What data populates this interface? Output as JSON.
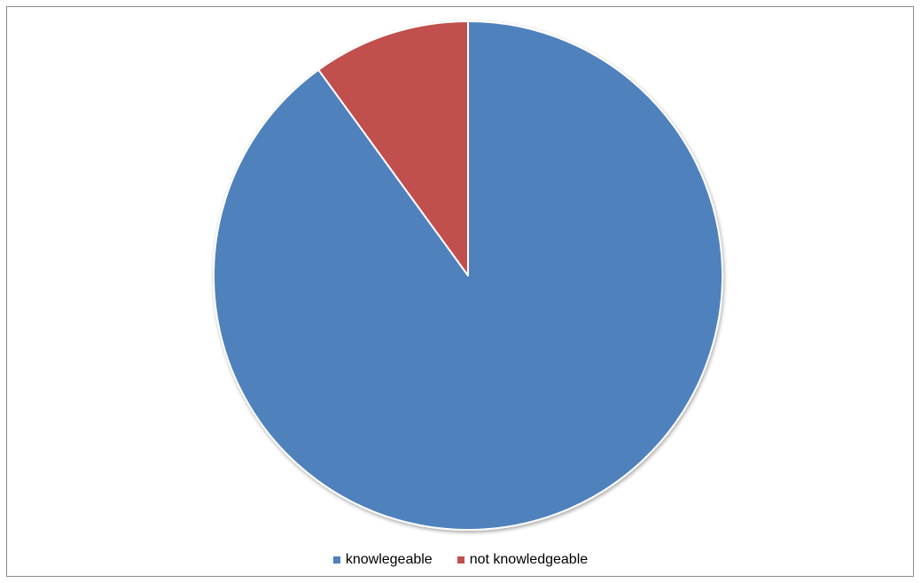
{
  "chart_data": {
    "type": "pie",
    "title": "",
    "categories": [
      "knowlegeable",
      "not knowledgeable"
    ],
    "values": [
      90,
      10
    ],
    "colors": [
      "#4F81BD",
      "#C0504D"
    ],
    "start_angle_deg": 0,
    "direction": "clockwise",
    "legend": "bottom-center"
  }
}
